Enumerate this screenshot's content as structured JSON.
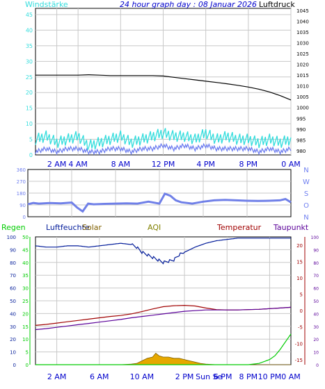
{
  "colors": {
    "background": "#ffffff",
    "plot_bg": "#ffffff",
    "grid": "#c8c8c8",
    "axis": "#000000",
    "pressure": "#000000",
    "wind_gust": "#33dddd",
    "wind_avg": "#6f7ff0",
    "direction": "#7080e8",
    "label_blue": "#0000cc",
    "humidity": "#001a99",
    "temperature": "#a00000",
    "dewpoint": "#5a0099",
    "rain": "#00cc00",
    "solar": "#e6a800",
    "solar_dark": "#806000",
    "aqi": "#808000",
    "rain_label": "#00cc00",
    "direction_label": "#6f7ff0"
  },
  "chart_data": [
    {
      "type": "line",
      "title": "24 hour graph day : 08 Januar 2026",
      "left_label": "Windstärke",
      "right_label": "Luftdruck",
      "x_ticks": [
        "2 AM",
        "4 AM",
        "8 AM",
        "12 PM",
        "4 PM",
        "8 PM",
        "0 AM"
      ],
      "x_range_hours": [
        0,
        24
      ],
      "left_ticks": [
        0,
        5,
        10,
        15,
        20,
        25,
        30,
        35,
        40,
        45
      ],
      "left_ylim": [
        0,
        47
      ],
      "right_ticks": [
        980,
        985,
        990,
        995,
        1000,
        1005,
        1010,
        1015,
        1020,
        1025,
        1030,
        1035,
        1040,
        1045
      ],
      "right_ylim": [
        978,
        1046
      ],
      "grid": true,
      "series": [
        {
          "name": "Luftdruck",
          "axis": "right",
          "x": [
            0,
            2,
            4,
            5,
            6,
            7,
            8,
            9,
            10,
            11,
            12,
            13,
            14,
            15,
            16,
            17,
            18,
            19,
            20,
            21,
            22,
            23,
            24
          ],
          "y": [
            1015,
            1015,
            1015,
            1015.2,
            1015,
            1014.8,
            1014.8,
            1014.8,
            1014.8,
            1014.8,
            1014.6,
            1014,
            1013.4,
            1012.8,
            1012.2,
            1011.6,
            1011,
            1010.3,
            1009.5,
            1008.5,
            1007.2,
            1005.5,
            1003.5
          ]
        },
        {
          "name": "gust",
          "axis": "left",
          "x": [
            0,
            1,
            2,
            3,
            4,
            5,
            6,
            7,
            8,
            9,
            10,
            11,
            12,
            13,
            14,
            15,
            16,
            17,
            18,
            19,
            20,
            21,
            22,
            23,
            24
          ],
          "y": [
            5,
            6,
            4,
            5,
            6,
            3,
            4,
            5,
            6,
            4,
            5,
            6,
            7,
            6,
            6,
            5,
            7,
            5,
            6,
            5,
            5,
            4,
            5,
            4,
            5
          ]
        },
        {
          "name": "average",
          "axis": "left",
          "x": [
            0,
            1,
            2,
            3,
            4,
            5,
            6,
            7,
            8,
            9,
            10,
            11,
            12,
            13,
            14,
            15,
            16,
            17,
            18,
            19,
            20,
            21,
            22,
            23,
            24
          ],
          "y": [
            1,
            2,
            1,
            2,
            2,
            1,
            1,
            2,
            2,
            1,
            2,
            2,
            3,
            2,
            3,
            2,
            3,
            2,
            2,
            2,
            2,
            1,
            2,
            1,
            2
          ]
        }
      ]
    },
    {
      "type": "line",
      "x_ticks": [],
      "y_ticks": [
        0,
        90,
        180,
        270,
        360
      ],
      "ylim": [
        0,
        360
      ],
      "direction_labels": [
        "N",
        "W",
        "S",
        "O",
        "N"
      ],
      "grid": true,
      "series": [
        {
          "name": "Windrichtung",
          "x": [
            0,
            0.5,
            1,
            2,
            3,
            4,
            4.5,
            5,
            5.5,
            6,
            7,
            8,
            9,
            10,
            11,
            12,
            12.5,
            13,
            13.5,
            14,
            15,
            16,
            17,
            18,
            19,
            20,
            21,
            22,
            23,
            23.5,
            24
          ],
          "y": [
            95,
            105,
            100,
            105,
            102,
            108,
            70,
            40,
            100,
            95,
            98,
            100,
            102,
            100,
            115,
            100,
            175,
            160,
            125,
            110,
            100,
            115,
            125,
            128,
            125,
            122,
            120,
            122,
            125,
            135,
            110
          ]
        }
      ]
    },
    {
      "type": "line",
      "labels": {
        "rain": "Regen",
        "humidity": "Luftfeuchte",
        "solar": "Solar",
        "aqi": "AQI",
        "temperature": "Temperatur",
        "dewpoint": "Taupunkt"
      },
      "x_ticks": [
        "2 AM",
        "6 AM",
        "10 AM",
        "2 PM",
        "Sun Se",
        "6 PM",
        "8 PM",
        "10 PM",
        "0 AM"
      ],
      "rain_ticks": [
        0,
        5,
        10,
        15,
        20,
        25,
        30,
        35,
        40,
        45,
        50
      ],
      "rain_ylim": [
        0,
        50
      ],
      "humidity_ticks": [
        0,
        10,
        20,
        30,
        40,
        50,
        60,
        70,
        80,
        90,
        100
      ],
      "humidity_ylim": [
        0,
        100
      ],
      "temperature_ticks": [
        -15,
        -10,
        -5,
        0,
        5,
        10,
        15,
        20
      ],
      "temperature_ylim": [
        -16.5,
        22.5
      ],
      "aqi_ticks": [
        0,
        10,
        20,
        30,
        40,
        50,
        60,
        70,
        80,
        90,
        100
      ],
      "aqi_ylim": [
        0,
        100
      ],
      "grid": true,
      "series": [
        {
          "name": "Luftfeuchte",
          "axis": "humidity",
          "x": [
            0,
            1,
            2,
            3,
            4,
            5,
            6,
            7,
            8,
            9,
            9.5,
            10,
            10.5,
            11,
            11.5,
            12,
            12.5,
            13,
            13.5,
            14,
            15,
            16,
            17,
            18,
            19,
            20,
            21,
            22,
            23,
            24
          ],
          "y": [
            93,
            92,
            92,
            93,
            93,
            92,
            93,
            94,
            95,
            94,
            92,
            88,
            86,
            84,
            82,
            80,
            81,
            82,
            86,
            88,
            92,
            95,
            97,
            98,
            99,
            99,
            99,
            99,
            99,
            99
          ]
        },
        {
          "name": "Temperatur",
          "axis": "temperature",
          "x": [
            0,
            1,
            2,
            3,
            4,
            5,
            6,
            7,
            8,
            9,
            10,
            11,
            12,
            13,
            14,
            15,
            16,
            17,
            18,
            19,
            20,
            21,
            22,
            23,
            24
          ],
          "y": [
            -4.5,
            -4.2,
            -3.8,
            -3.4,
            -3.0,
            -2.6,
            -2.2,
            -1.8,
            -1.5,
            -1.0,
            -0.3,
            0.5,
            1.2,
            1.5,
            1.6,
            1.4,
            0.8,
            0.3,
            0.2,
            0.2,
            0.3,
            0.4,
            0.6,
            0.8,
            1.0
          ]
        },
        {
          "name": "Taupunkt",
          "axis": "temperature",
          "x": [
            0,
            1,
            2,
            3,
            4,
            5,
            6,
            7,
            8,
            9,
            10,
            11,
            12,
            13,
            14,
            15,
            16,
            17,
            18,
            19,
            20,
            21,
            22,
            23,
            24
          ],
          "y": [
            -5.8,
            -5.5,
            -5.1,
            -4.7,
            -4.3,
            -3.9,
            -3.5,
            -3.1,
            -2.7,
            -2.2,
            -1.8,
            -1.4,
            -1.0,
            -0.6,
            -0.2,
            0.0,
            0.2,
            0.2,
            0.2,
            0.2,
            0.3,
            0.4,
            0.6,
            0.8,
            1.0
          ]
        },
        {
          "name": "Regen",
          "axis": "rain",
          "x": [
            0,
            18,
            19,
            20,
            21,
            22,
            22.5,
            23,
            24
          ],
          "y": [
            0,
            0,
            0,
            0,
            0.5,
            2,
            3.5,
            6,
            12
          ]
        },
        {
          "name": "Solar",
          "axis": "humidity",
          "kind": "area",
          "x": [
            0,
            8,
            9,
            9.5,
            10,
            10.5,
            11,
            11.3,
            11.6,
            12,
            12.5,
            13,
            13.5,
            14,
            14.5,
            15,
            15.5,
            16,
            17,
            24
          ],
          "y": [
            0,
            0,
            0.5,
            1,
            3,
            5,
            6,
            9,
            7,
            6,
            6,
            5,
            5,
            4,
            3,
            2,
            1,
            0.5,
            0,
            0
          ]
        }
      ]
    }
  ]
}
